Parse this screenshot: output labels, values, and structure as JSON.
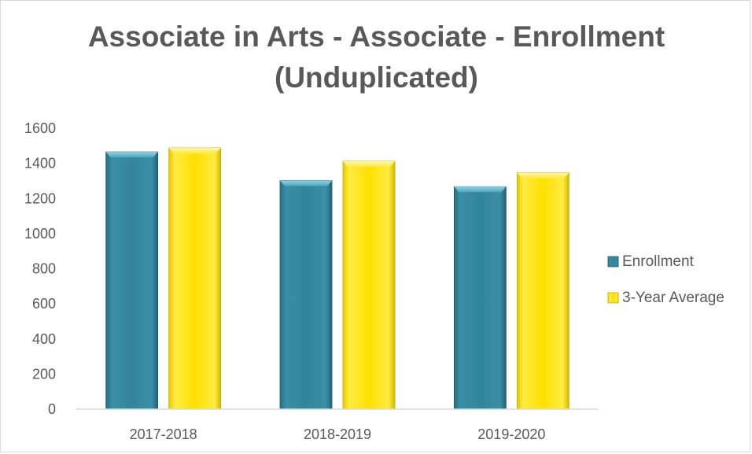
{
  "chart_data": {
    "type": "bar",
    "title_line1": "Associate in Arts - Associate - Enrollment",
    "title_line2": "(Unduplicated)",
    "categories": [
      "2017-2018",
      "2018-2019",
      "2019-2020"
    ],
    "series": [
      {
        "name": "Enrollment",
        "values": [
          1465,
          1302,
          1267
        ],
        "color": "#31849b"
      },
      {
        "name": "3-Year Average",
        "values": [
          1488,
          1412,
          1347
        ],
        "color": "#ffe000"
      }
    ],
    "ylim": [
      0,
      1600
    ],
    "yticks": [
      "0",
      "200",
      "400",
      "600",
      "800",
      "1000",
      "1200",
      "1400",
      "1600"
    ],
    "grid": false,
    "legend_position": "right"
  }
}
